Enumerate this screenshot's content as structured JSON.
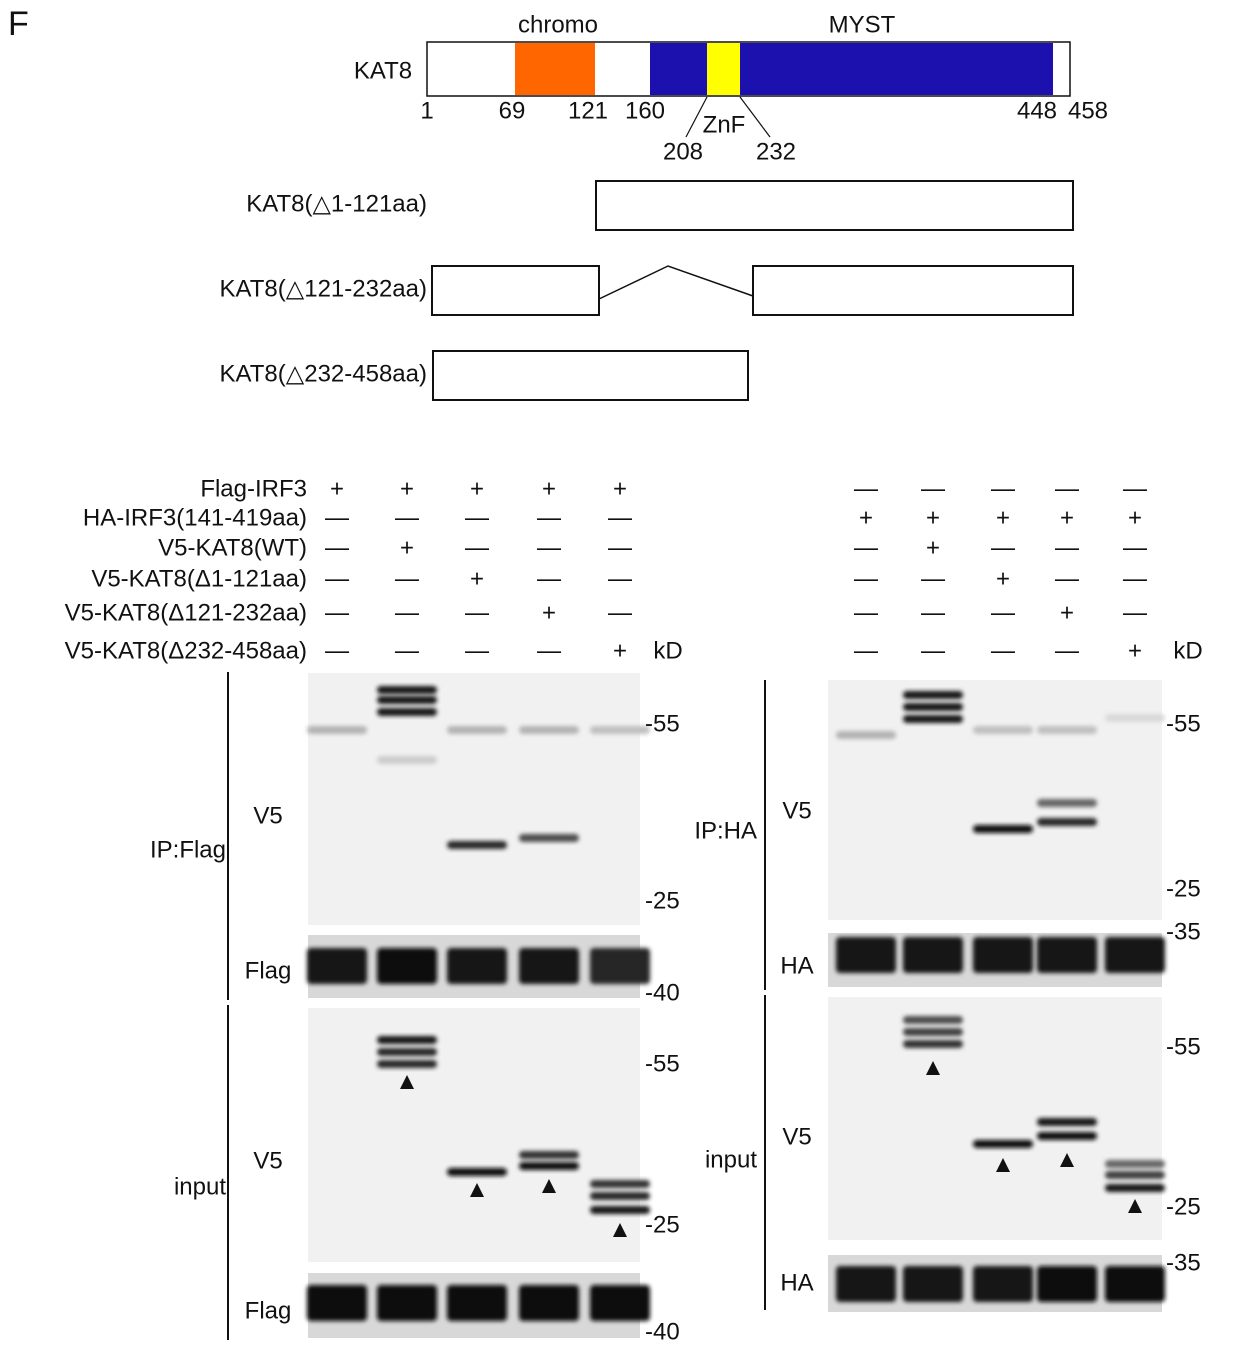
{
  "panel_label": "F",
  "domain_map": {
    "protein": "KAT8",
    "domains": [
      {
        "name": "chromo",
        "color": "#ff6600"
      },
      {
        "name": "MYST",
        "color": "#1c10ae"
      },
      {
        "name": "ZnF",
        "color": "#ffff00"
      }
    ],
    "positions": [
      "1",
      "69",
      "121",
      "160",
      "448",
      "458"
    ],
    "znf_positions": [
      "208",
      "232"
    ],
    "constructs": [
      "KAT8(△1-121aa)",
      "KAT8(△121-232aa)",
      "KAT8(△232-458aa)"
    ]
  },
  "blots": [
    {
      "conditions": [
        {
          "label": "Flag-IRF3",
          "signs": [
            "+",
            "+",
            "+",
            "+",
            "+"
          ]
        },
        {
          "label": "HA-IRF3(141-419aa)",
          "signs": [
            "—",
            "—",
            "—",
            "—",
            "—"
          ]
        },
        {
          "label": "V5-KAT8(WT)",
          "signs": [
            "—",
            "+",
            "—",
            "—",
            "—"
          ]
        },
        {
          "label": "V5-KAT8(Δ1-121aa)",
          "signs": [
            "—",
            "—",
            "+",
            "—",
            "—"
          ]
        },
        {
          "label": "V5-KAT8(Δ121-232aa)",
          "signs": [
            "—",
            "—",
            "—",
            "+",
            "—"
          ]
        },
        {
          "label": "V5-KAT8(Δ232-458aa)",
          "signs": [
            "—",
            "—",
            "—",
            "—",
            "+"
          ]
        }
      ],
      "unit": "kD",
      "sections": [
        {
          "label": "IP:Flag",
          "panels": [
            {
              "antibody": "V5",
              "markers": [
                "-55",
                "-25"
              ]
            },
            {
              "antibody": "Flag",
              "markers": [
                "-40"
              ]
            }
          ]
        },
        {
          "label": "input",
          "panels": [
            {
              "antibody": "V5",
              "markers": [
                "-55",
                "-25"
              ]
            },
            {
              "antibody": "Flag",
              "markers": [
                "-40"
              ]
            }
          ]
        }
      ]
    },
    {
      "conditions": [
        {
          "signs": [
            "—",
            "—",
            "—",
            "—",
            "—"
          ]
        },
        {
          "signs": [
            "+",
            "+",
            "+",
            "+",
            "+"
          ]
        },
        {
          "signs": [
            "—",
            "+",
            "—",
            "—",
            "—"
          ]
        },
        {
          "signs": [
            "—",
            "—",
            "+",
            "—",
            "—"
          ]
        },
        {
          "signs": [
            "—",
            "—",
            "—",
            "+",
            "—"
          ]
        },
        {
          "signs": [
            "—",
            "—",
            "—",
            "—",
            "+"
          ]
        }
      ],
      "unit": "kD",
      "sections": [
        {
          "label": "IP:HA",
          "panels": [
            {
              "antibody": "V5",
              "markers": [
                "-55",
                "-25"
              ]
            },
            {
              "antibody": "HA",
              "markers": [
                "-35"
              ]
            }
          ]
        },
        {
          "label": "input",
          "panels": [
            {
              "antibody": "V5",
              "markers": [
                "-55",
                "-25"
              ]
            },
            {
              "antibody": "HA",
              "markers": [
                "-35"
              ]
            }
          ]
        }
      ]
    }
  ]
}
